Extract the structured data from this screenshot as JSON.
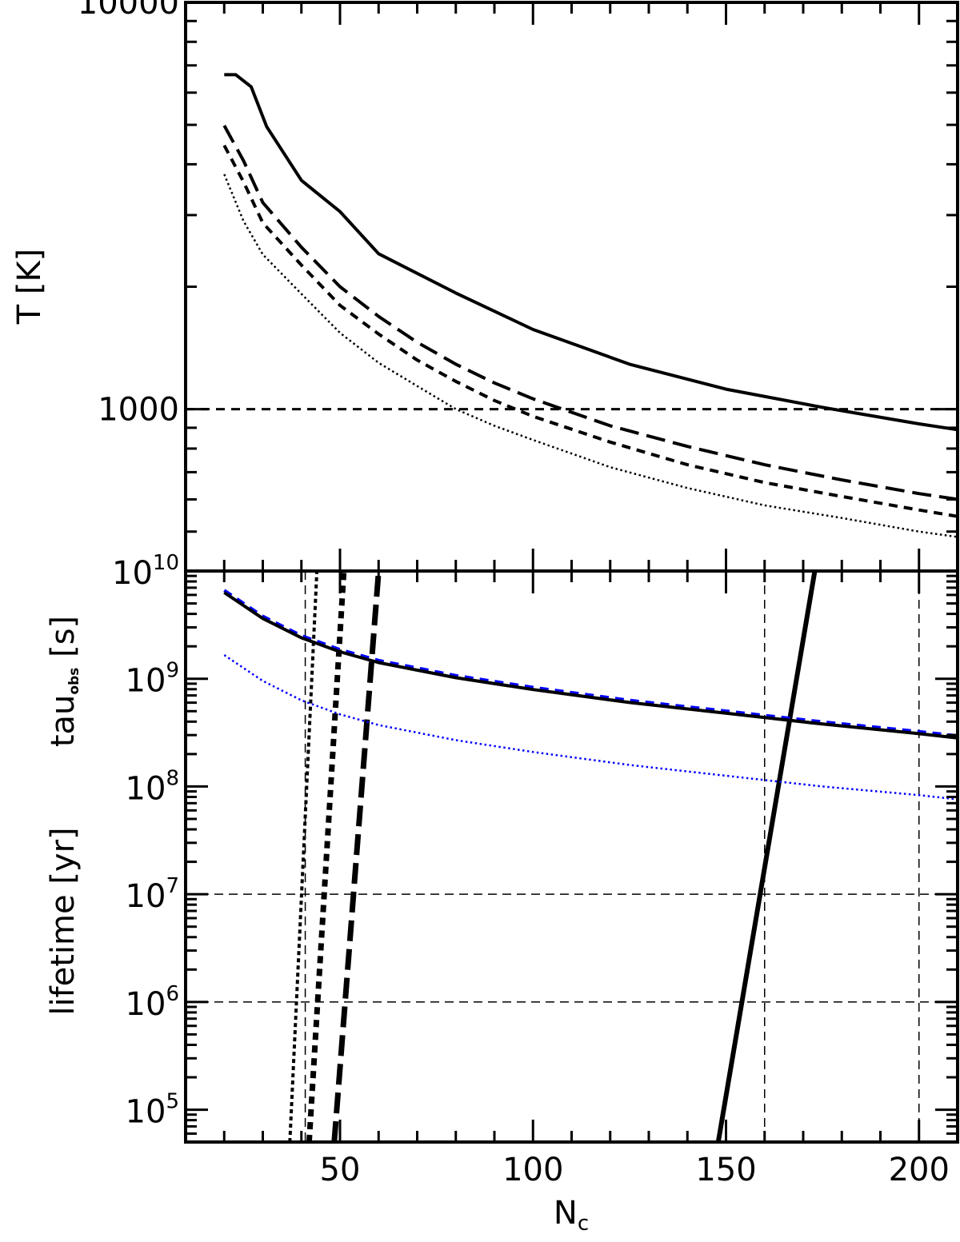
{
  "chart_data": [
    {
      "type": "line",
      "panel": "top",
      "ylabel": "T [K]",
      "yscale": "log",
      "ylim": [
        400,
        10000
      ],
      "xlim": [
        10,
        210
      ],
      "ytick_labels": [
        "10000",
        "1000"
      ],
      "yticks": [
        10000,
        1000
      ],
      "reference_lines": [
        {
          "orientation": "horizontal",
          "value": 1000,
          "style": "dashed"
        }
      ],
      "series": [
        {
          "style": "solid",
          "color": "#000000",
          "x": [
            20,
            23,
            27,
            31,
            40,
            50,
            60,
            80,
            100,
            125,
            150,
            175,
            200,
            210
          ],
          "y": [
            6640,
            6640,
            6200,
            4950,
            3650,
            3060,
            2410,
            1930,
            1570,
            1290,
            1120,
            1010,
            920,
            890
          ]
        },
        {
          "style": "longdash",
          "color": "#000000",
          "x": [
            20,
            25,
            30,
            40,
            50,
            60,
            70,
            80,
            90,
            100,
            120,
            140,
            160,
            180,
            200,
            210
          ],
          "y": [
            4980,
            4080,
            3220,
            2500,
            2000,
            1690,
            1460,
            1290,
            1160,
            1060,
            910,
            810,
            730,
            670,
            620,
            600
          ]
        },
        {
          "style": "dashed",
          "color": "#000000",
          "x": [
            20,
            25,
            30,
            40,
            50,
            60,
            70,
            80,
            90,
            100,
            120,
            140,
            160,
            180,
            200,
            210
          ],
          "y": [
            4450,
            3620,
            2870,
            2260,
            1800,
            1530,
            1320,
            1170,
            1050,
            960,
            830,
            730,
            660,
            610,
            565,
            545
          ]
        },
        {
          "style": "dotted",
          "color": "#000000",
          "x": [
            20,
            25,
            30,
            40,
            50,
            60,
            70,
            80,
            90,
            100,
            120,
            140,
            160,
            180,
            200,
            210
          ],
          "y": [
            3780,
            2900,
            2400,
            1920,
            1540,
            1300,
            1140,
            1000,
            910,
            840,
            720,
            640,
            580,
            540,
            500,
            485
          ]
        }
      ]
    },
    {
      "type": "line",
      "panel": "bottom",
      "ylabel_parts": {
        "tau": "tau",
        "tau_sub": "obs",
        "tau_unit": "[s]",
        "lifetime": "lifetime [yr]"
      },
      "xlabel": {
        "main": "N",
        "sub": "c"
      },
      "yscale": "log",
      "ylim_exp": [
        4.7,
        10
      ],
      "xlim": [
        10,
        210
      ],
      "xticks": [
        50,
        100,
        150,
        200
      ],
      "xtick_labels": [
        "50",
        "100",
        "150",
        "200"
      ],
      "ytick_labels": [
        {
          "base": "10",
          "exp": "10",
          "value_exp": 10
        },
        {
          "base": "10",
          "exp": "9",
          "value_exp": 9
        },
        {
          "base": "10",
          "exp": "8",
          "value_exp": 8
        },
        {
          "base": "10",
          "exp": "7",
          "value_exp": 7
        },
        {
          "base": "10",
          "exp": "6",
          "value_exp": 6
        },
        {
          "base": "10",
          "exp": "5",
          "value_exp": 5
        }
      ],
      "reference_lines": [
        {
          "orientation": "horizontal",
          "value_exp": 7,
          "style": "thin-dashed"
        },
        {
          "orientation": "horizontal",
          "value_exp": 6,
          "style": "thin-dashed"
        },
        {
          "orientation": "vertical",
          "value": 41,
          "style": "thin-dashed"
        },
        {
          "orientation": "vertical",
          "value": 160,
          "style": "thin-dashed"
        },
        {
          "orientation": "vertical",
          "value": 200,
          "style": "thin-dashed"
        }
      ],
      "series": [
        {
          "style": "solid-thick",
          "color": "#000000",
          "x": [
            148,
            173
          ],
          "y_exp": [
            4.7,
            10.0
          ]
        },
        {
          "style": "longdash-thick",
          "color": "#000000",
          "x": [
            48.5,
            60
          ],
          "y_exp": [
            4.7,
            10.0
          ]
        },
        {
          "style": "dashed-thick",
          "color": "#000000",
          "x": [
            42,
            51
          ],
          "y_exp": [
            4.7,
            10.0
          ]
        },
        {
          "style": "dotted-thick",
          "color": "#000000",
          "x": [
            37,
            44
          ],
          "y_exp": [
            4.7,
            10.0
          ]
        },
        {
          "style": "dashed",
          "color": "#0000ff",
          "x": [
            20,
            30,
            40,
            50,
            60,
            80,
            100,
            125,
            150,
            175,
            200,
            210
          ],
          "y_exp": [
            9.82,
            9.58,
            9.4,
            9.27,
            9.17,
            9.03,
            8.92,
            8.8,
            8.7,
            8.6,
            8.51,
            8.47
          ]
        },
        {
          "style": "solid",
          "color": "#000000",
          "x": [
            20,
            30,
            40,
            50,
            60,
            80,
            100,
            125,
            150,
            175,
            200,
            210
          ],
          "y_exp": [
            9.8,
            9.56,
            9.38,
            9.25,
            9.15,
            9.01,
            8.9,
            8.78,
            8.68,
            8.58,
            8.49,
            8.45
          ]
        },
        {
          "style": "dotted",
          "color": "#0000ff",
          "x": [
            20,
            30,
            40,
            50,
            60,
            80,
            100,
            125,
            150,
            175,
            200,
            210
          ],
          "y_exp": [
            9.22,
            8.98,
            8.8,
            8.67,
            8.57,
            8.43,
            8.32,
            8.2,
            8.1,
            8.0,
            7.92,
            7.88
          ]
        }
      ]
    }
  ]
}
